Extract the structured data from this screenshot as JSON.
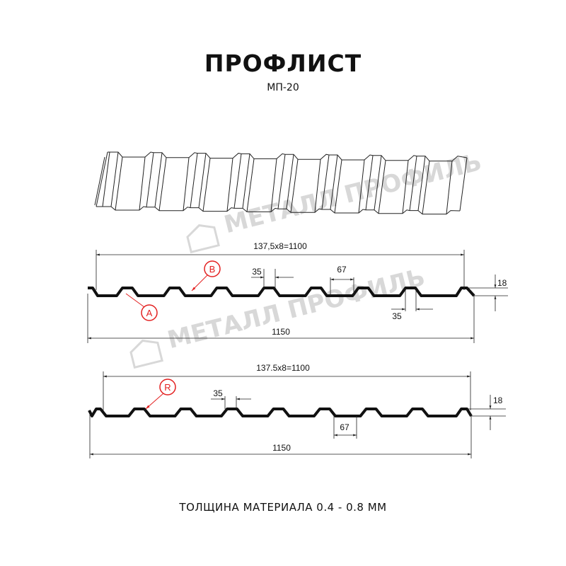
{
  "header": {
    "title": "ПРОФЛИСТ",
    "subtitle": "МП-20"
  },
  "watermark": {
    "text": "МЕТАЛЛ ПРОФИЛЬ",
    "color": "#d8d8d8"
  },
  "profile_top": {
    "pitch_label": "137,5x8=1100",
    "width_label": "1150",
    "rib_top_label": "35",
    "rib_bottom_label": "35",
    "valley_label": "67",
    "height_label": "18",
    "marker_a": "A",
    "marker_b": "B"
  },
  "profile_bottom": {
    "pitch_label": "137.5x8=1100",
    "width_label": "1150",
    "rib_top_label": "35",
    "valley_label": "67",
    "height_label": "18",
    "marker_r": "R"
  },
  "footer": {
    "text": "ТОЛЩИНА МАТЕРИАЛА 0.4 - 0.8 ММ"
  },
  "colors": {
    "profile": "#111111",
    "marker": "#e32020",
    "dimension": "#222222"
  }
}
